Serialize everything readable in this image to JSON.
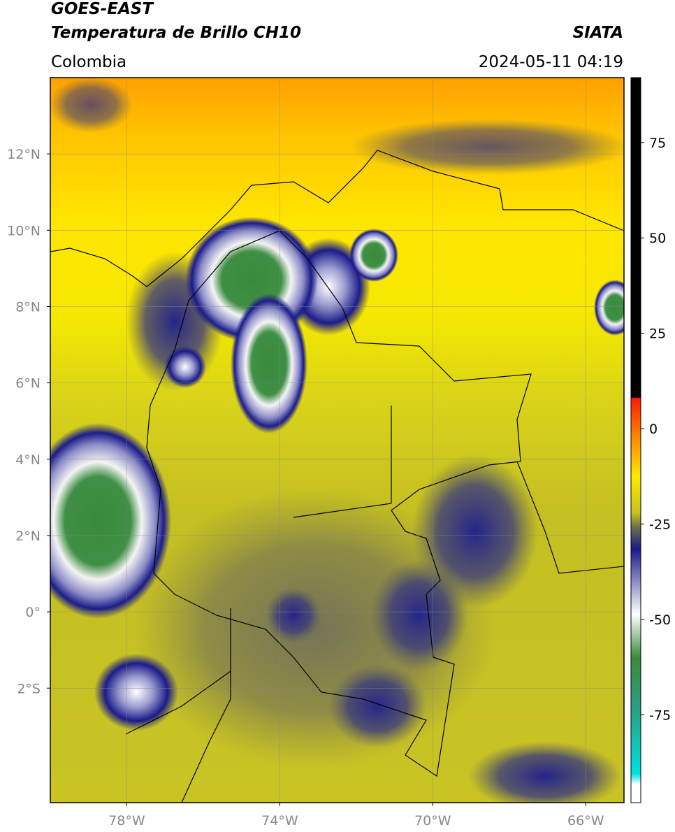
{
  "header": {
    "title": "GOES-EAST",
    "product": "Temperatura de Brillo CH10",
    "source": "SIATA",
    "region": "Colombia",
    "datetime": "2024-05-11 04:19"
  },
  "map": {
    "xlim": [
      -80,
      -65
    ],
    "ylim": [
      -5,
      14
    ],
    "xticks": [
      {
        "value": -78,
        "label": "78°W"
      },
      {
        "value": -74,
        "label": "74°W"
      },
      {
        "value": -70,
        "label": "70°W"
      },
      {
        "value": -66,
        "label": "66°W"
      }
    ],
    "yticks": [
      {
        "value": 12,
        "label": "12°N"
      },
      {
        "value": 10,
        "label": "10°N"
      },
      {
        "value": 8,
        "label": "8°N"
      },
      {
        "value": 6,
        "label": "6°N"
      },
      {
        "value": 4,
        "label": "4°N"
      },
      {
        "value": 2,
        "label": "2°N"
      },
      {
        "value": 0,
        "label": "0°"
      },
      {
        "value": -2,
        "label": "2°S"
      }
    ]
  },
  "colorbar": {
    "lim": [
      -98,
      92
    ],
    "ticks": [
      75,
      50,
      25,
      0,
      -25,
      -50,
      -75
    ]
  }
}
